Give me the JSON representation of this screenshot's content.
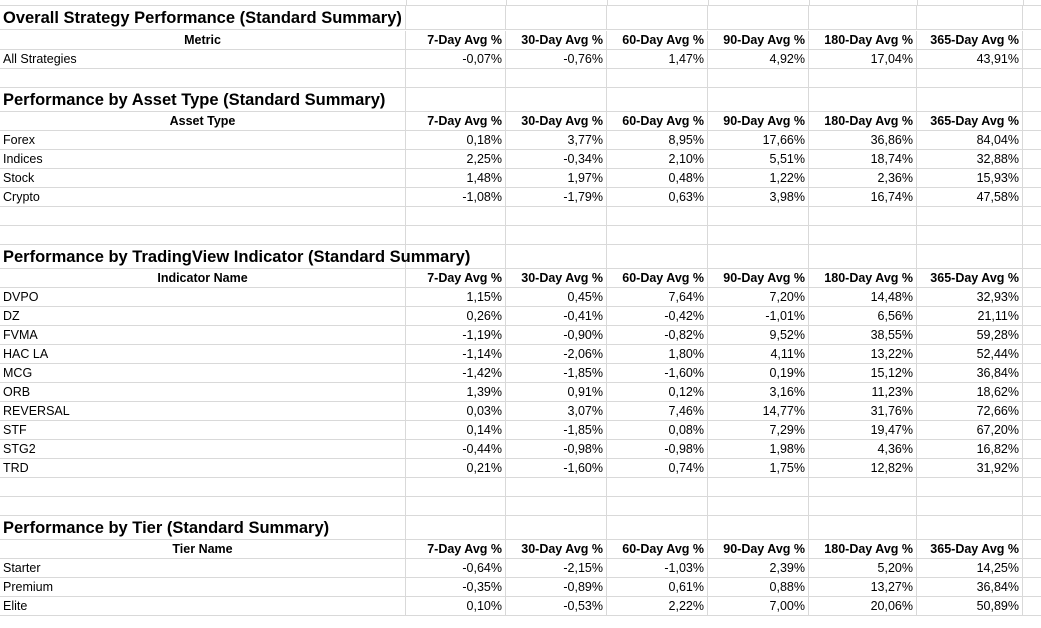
{
  "columns": [
    "7-Day Avg %",
    "30-Day Avg %",
    "60-Day Avg %",
    "90-Day Avg %",
    "180-Day Avg %",
    "365-Day Avg %"
  ],
  "sections": [
    {
      "title": "Overall Strategy Performance (Standard Summary)",
      "label_header": "Metric",
      "rows": [
        {
          "label": "All Strategies",
          "values": [
            "-0,07%",
            "-0,76%",
            "1,47%",
            "4,92%",
            "17,04%",
            "43,91%"
          ]
        }
      ]
    },
    {
      "title": "Performance by Asset Type (Standard Summary)",
      "label_header": "Asset Type",
      "rows": [
        {
          "label": "Forex",
          "values": [
            "0,18%",
            "3,77%",
            "8,95%",
            "17,66%",
            "36,86%",
            "84,04%"
          ]
        },
        {
          "label": "Indices",
          "values": [
            "2,25%",
            "-0,34%",
            "2,10%",
            "5,51%",
            "18,74%",
            "32,88%"
          ]
        },
        {
          "label": "Stock",
          "values": [
            "1,48%",
            "1,97%",
            "0,48%",
            "1,22%",
            "2,36%",
            "15,93%"
          ]
        },
        {
          "label": "Crypto",
          "values": [
            "-1,08%",
            "-1,79%",
            "0,63%",
            "3,98%",
            "16,74%",
            "47,58%"
          ]
        }
      ]
    },
    {
      "title": "Performance by TradingView Indicator (Standard Summary)",
      "label_header": "Indicator Name",
      "rows": [
        {
          "label": "DVPO",
          "values": [
            "1,15%",
            "0,45%",
            "7,64%",
            "7,20%",
            "14,48%",
            "32,93%"
          ]
        },
        {
          "label": "DZ",
          "values": [
            "0,26%",
            "-0,41%",
            "-0,42%",
            "-1,01%",
            "6,56%",
            "21,11%"
          ]
        },
        {
          "label": "FVMA",
          "values": [
            "-1,19%",
            "-0,90%",
            "-0,82%",
            "9,52%",
            "38,55%",
            "59,28%"
          ]
        },
        {
          "label": "HAC LA",
          "values": [
            "-1,14%",
            "-2,06%",
            "1,80%",
            "4,11%",
            "13,22%",
            "52,44%"
          ]
        },
        {
          "label": "MCG",
          "values": [
            "-1,42%",
            "-1,85%",
            "-1,60%",
            "0,19%",
            "15,12%",
            "36,84%"
          ]
        },
        {
          "label": "ORB",
          "values": [
            "1,39%",
            "0,91%",
            "0,12%",
            "3,16%",
            "11,23%",
            "18,62%"
          ]
        },
        {
          "label": "REVERSAL",
          "values": [
            "0,03%",
            "3,07%",
            "7,46%",
            "14,77%",
            "31,76%",
            "72,66%"
          ]
        },
        {
          "label": "STF",
          "values": [
            "0,14%",
            "-1,85%",
            "0,08%",
            "7,29%",
            "19,47%",
            "67,20%"
          ]
        },
        {
          "label": "STG2",
          "values": [
            "-0,44%",
            "-0,98%",
            "-0,98%",
            "1,98%",
            "4,36%",
            "16,82%"
          ]
        },
        {
          "label": "TRD",
          "values": [
            "0,21%",
            "-1,60%",
            "0,74%",
            "1,75%",
            "12,82%",
            "31,92%"
          ]
        }
      ]
    },
    {
      "title": "Performance by Tier (Standard Summary)",
      "label_header": "Tier Name",
      "rows": [
        {
          "label": "Starter",
          "values": [
            "-0,64%",
            "-2,15%",
            "-1,03%",
            "2,39%",
            "5,20%",
            "14,25%"
          ]
        },
        {
          "label": "Premium",
          "values": [
            "-0,35%",
            "-0,89%",
            "0,61%",
            "0,88%",
            "13,27%",
            "36,84%"
          ]
        },
        {
          "label": "Elite",
          "values": [
            "0,10%",
            "-0,53%",
            "2,22%",
            "7,00%",
            "20,06%",
            "50,89%"
          ]
        }
      ]
    }
  ]
}
